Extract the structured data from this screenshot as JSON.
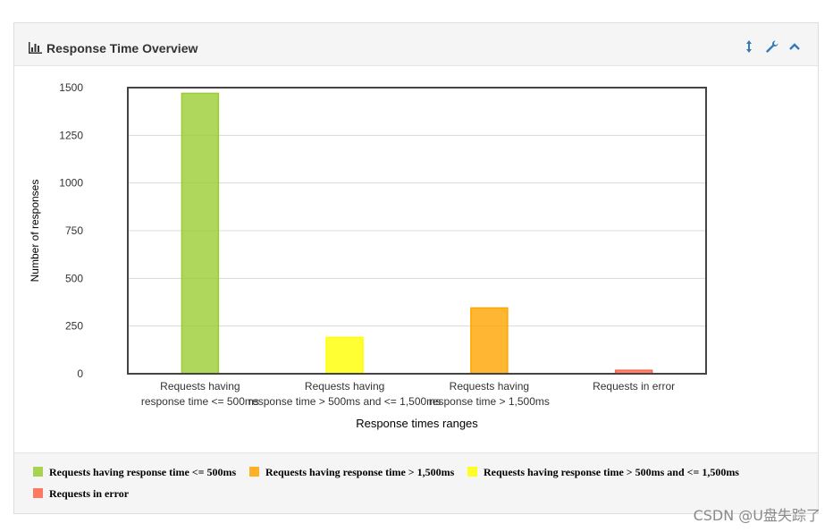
{
  "panel": {
    "title": "Response Time Overview",
    "bars_icon": "bar-chart-icon",
    "controls": [
      "resize-vertical-icon",
      "wrench-icon",
      "chevron-up-icon"
    ],
    "accent": "#337ab7"
  },
  "chart_data": {
    "type": "bar",
    "title": "",
    "xlabel": "Response times ranges",
    "ylabel": "Number of responses",
    "ylim": [
      0,
      1500
    ],
    "yticks": [
      "1500",
      "1250",
      "1000",
      "750",
      "500",
      "250",
      "0"
    ],
    "categories": [
      [
        "Requests having",
        "response time <= 500ms"
      ],
      [
        "Requests having",
        "response time > 500ms and <= 1,500ms"
      ],
      [
        "Requests having",
        "response time > 1,500ms"
      ],
      [
        "Requests in error"
      ]
    ],
    "values": [
      1470,
      190,
      345,
      18
    ],
    "colors": [
      "#9ACD32",
      "#FFFF00",
      "#FFA500",
      "#FF6347"
    ],
    "grid": true
  },
  "legend": [
    {
      "label": "Requests having response time <= 500ms",
      "color": "#9ACD32"
    },
    {
      "label": "Requests having response time > 1,500ms",
      "color": "#FFA500"
    },
    {
      "label": "Requests having response time > 500ms and <= 1,500ms",
      "color": "#FFFF00"
    },
    {
      "label": "Requests in error",
      "color": "#FF6347"
    }
  ],
  "watermark": "CSDN @U盘失踪了"
}
